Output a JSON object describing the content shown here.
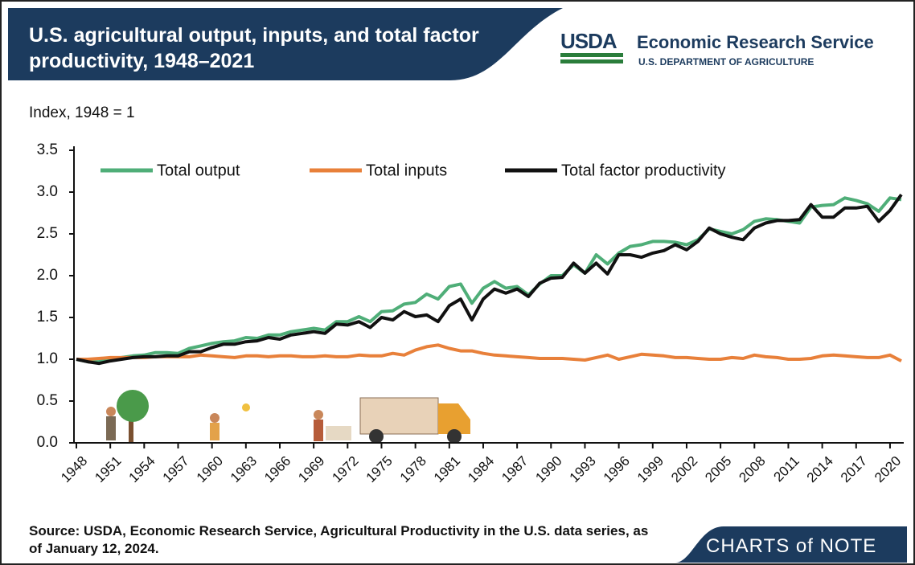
{
  "header": {
    "title": "U.S. agricultural output, inputs, and total factor productivity, 1948–2021",
    "logo": "USDA",
    "agency": "Economic Research Service",
    "department": "U.S. DEPARTMENT OF AGRICULTURE"
  },
  "chart_data": {
    "type": "line",
    "y_label": "Index, 1948 = 1",
    "legend": "top",
    "x": [
      1948,
      1949,
      1950,
      1951,
      1952,
      1953,
      1954,
      1955,
      1956,
      1957,
      1958,
      1959,
      1960,
      1961,
      1962,
      1963,
      1964,
      1965,
      1966,
      1967,
      1968,
      1969,
      1970,
      1971,
      1972,
      1973,
      1974,
      1975,
      1976,
      1977,
      1978,
      1979,
      1980,
      1981,
      1982,
      1983,
      1984,
      1985,
      1986,
      1987,
      1988,
      1989,
      1990,
      1991,
      1992,
      1993,
      1994,
      1995,
      1996,
      1997,
      1998,
      1999,
      2000,
      2001,
      2002,
      2003,
      2004,
      2005,
      2006,
      2007,
      2008,
      2009,
      2010,
      2011,
      2012,
      2013,
      2014,
      2015,
      2016,
      2017,
      2018,
      2019,
      2020,
      2021
    ],
    "series": [
      {
        "name": "Total output",
        "color": "#4fae78",
        "values": [
          1.0,
          0.97,
          0.97,
          1.0,
          1.02,
          1.04,
          1.05,
          1.08,
          1.08,
          1.07,
          1.13,
          1.16,
          1.19,
          1.21,
          1.22,
          1.26,
          1.25,
          1.29,
          1.29,
          1.33,
          1.35,
          1.37,
          1.35,
          1.45,
          1.45,
          1.51,
          1.45,
          1.57,
          1.58,
          1.66,
          1.68,
          1.78,
          1.72,
          1.87,
          1.9,
          1.67,
          1.85,
          1.93,
          1.85,
          1.87,
          1.77,
          1.9,
          2.0,
          2.0,
          2.13,
          2.03,
          2.25,
          2.14,
          2.27,
          2.35,
          2.37,
          2.41,
          2.41,
          2.4,
          2.37,
          2.43,
          2.56,
          2.53,
          2.5,
          2.55,
          2.65,
          2.68,
          2.67,
          2.65,
          2.63,
          2.82,
          2.84,
          2.85,
          2.93,
          2.9,
          2.86,
          2.77,
          2.93,
          2.91
        ]
      },
      {
        "name": "Total inputs",
        "color": "#e8803a",
        "values": [
          1.0,
          1.0,
          1.01,
          1.02,
          1.02,
          1.02,
          1.02,
          1.03,
          1.03,
          1.03,
          1.03,
          1.05,
          1.04,
          1.03,
          1.02,
          1.04,
          1.04,
          1.03,
          1.04,
          1.04,
          1.03,
          1.03,
          1.04,
          1.03,
          1.03,
          1.05,
          1.04,
          1.04,
          1.07,
          1.05,
          1.11,
          1.15,
          1.17,
          1.13,
          1.1,
          1.1,
          1.07,
          1.05,
          1.04,
          1.03,
          1.02,
          1.01,
          1.01,
          1.01,
          1.0,
          0.99,
          1.02,
          1.05,
          1.0,
          1.03,
          1.06,
          1.05,
          1.04,
          1.02,
          1.02,
          1.01,
          1.0,
          1.0,
          1.02,
          1.01,
          1.05,
          1.03,
          1.02,
          1.0,
          1.0,
          1.01,
          1.04,
          1.05,
          1.04,
          1.03,
          1.02,
          1.02,
          1.05,
          0.98
        ]
      },
      {
        "name": "Total factor productivity",
        "color": "#111111",
        "values": [
          1.0,
          0.97,
          0.95,
          0.98,
          1.0,
          1.02,
          1.03,
          1.03,
          1.04,
          1.04,
          1.09,
          1.09,
          1.14,
          1.18,
          1.18,
          1.21,
          1.22,
          1.26,
          1.24,
          1.29,
          1.31,
          1.33,
          1.31,
          1.42,
          1.41,
          1.45,
          1.38,
          1.5,
          1.47,
          1.57,
          1.51,
          1.53,
          1.45,
          1.64,
          1.72,
          1.47,
          1.72,
          1.84,
          1.79,
          1.84,
          1.75,
          1.91,
          1.97,
          1.98,
          2.15,
          2.03,
          2.15,
          2.02,
          2.25,
          2.25,
          2.22,
          2.27,
          2.3,
          2.37,
          2.31,
          2.41,
          2.57,
          2.5,
          2.46,
          2.43,
          2.57,
          2.63,
          2.66,
          2.66,
          2.67,
          2.85,
          2.7,
          2.7,
          2.81,
          2.81,
          2.83,
          2.65,
          2.78,
          2.97
        ]
      }
    ],
    "xlim": [
      1948,
      2021
    ],
    "xticks": [
      1948,
      1951,
      1954,
      1957,
      1960,
      1963,
      1966,
      1969,
      1972,
      1975,
      1978,
      1981,
      1984,
      1987,
      1990,
      1993,
      1996,
      1999,
      2002,
      2005,
      2008,
      2011,
      2014,
      2017,
      2020
    ],
    "ylim": [
      0,
      3.5
    ],
    "yticks": [
      {
        "value": 0,
        "label": "0.0"
      },
      0.5,
      {
        "value": 1,
        "label": "1.0"
      },
      1.5,
      {
        "value": 2,
        "label": "2.0"
      },
      2.5,
      {
        "value": 3,
        "label": "3.0"
      },
      3.5
    ],
    "grid": false
  },
  "footer": {
    "source": "Source: USDA, Economic Research Service, Agricultural Productivity in the U.S. data series, as of January 12, 2024.",
    "brand": "CHARTS of NOTE"
  }
}
